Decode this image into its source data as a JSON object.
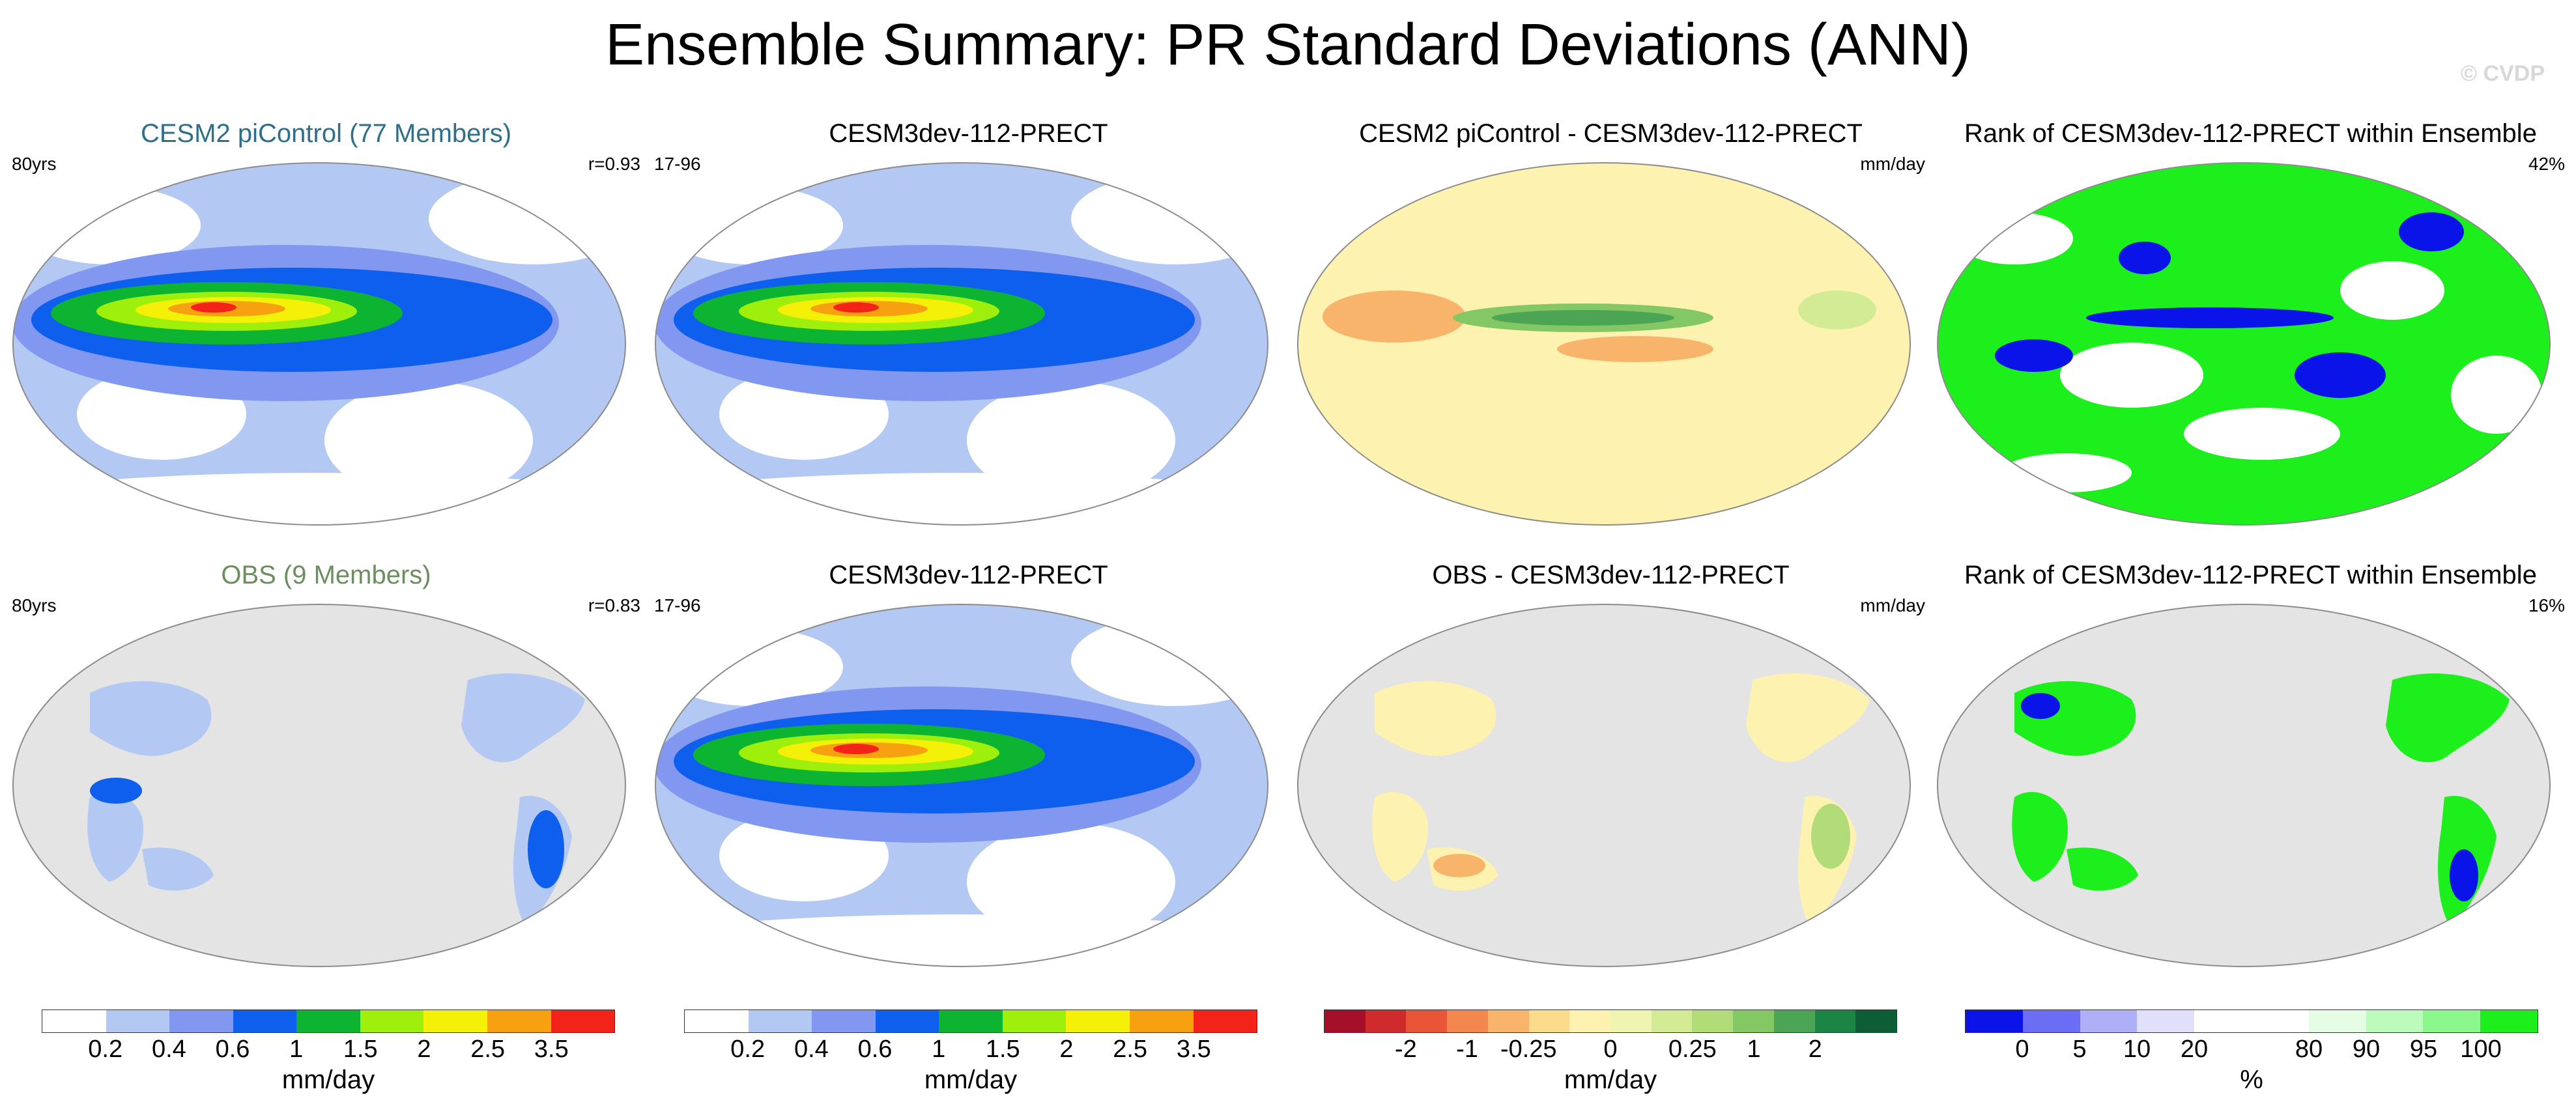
{
  "title": "Ensemble Summary: PR Standard Deviations (ANN)",
  "watermark": "© CVDP",
  "rows": [
    {
      "panels": [
        {
          "title": "CESM2 piControl (77 Members)",
          "left": "80yrs",
          "right": "r=0.93",
          "kind": "std"
        },
        {
          "title": "CESM3dev-112-PRECT",
          "left": "17-96",
          "right": "",
          "kind": "std"
        },
        {
          "title": "CESM2 piControl - CESM3dev-112-PRECT",
          "left": "",
          "right": "mm/day",
          "kind": "diff"
        },
        {
          "title": "Rank of CESM3dev-112-PRECT within Ensemble",
          "left": "",
          "right": "42%",
          "kind": "rank"
        }
      ]
    },
    {
      "panels": [
        {
          "title": "OBS (9 Members)",
          "left": "80yrs",
          "right": "r=0.83",
          "kind": "obs"
        },
        {
          "title": "CESM3dev-112-PRECT",
          "left": "17-96",
          "right": "",
          "kind": "std"
        },
        {
          "title": "OBS - CESM3dev-112-PRECT",
          "left": "",
          "right": "mm/day",
          "kind": "obsdiff"
        },
        {
          "title": "Rank of CESM3dev-112-PRECT within Ensemble",
          "left": "",
          "right": "16%",
          "kind": "obsrank"
        }
      ]
    }
  ],
  "colorbars": [
    {
      "colors": [
        "#ffffff",
        "#b4c8f4",
        "#8297f0",
        "#0f5fef",
        "#0db432",
        "#9fef0c",
        "#f4f007",
        "#f7a111",
        "#f4231a"
      ],
      "ticks": [
        "0.2",
        "0.4",
        "0.6",
        "1",
        "1.5",
        "2",
        "2.5",
        "3.5"
      ],
      "unit": "mm/day"
    },
    {
      "colors": [
        "#ffffff",
        "#b4c8f4",
        "#8297f0",
        "#0f5fef",
        "#0db432",
        "#9fef0c",
        "#f4f007",
        "#f7a111",
        "#f4231a"
      ],
      "ticks": [
        "0.2",
        "0.4",
        "0.6",
        "1",
        "1.5",
        "2",
        "2.5",
        "3.5"
      ],
      "unit": "mm/day"
    },
    {
      "colors": [
        "#a50f2a",
        "#cf2a2c",
        "#e85637",
        "#f3874f",
        "#f9b46b",
        "#fbdc8c",
        "#fdf2b0",
        "#eff5b0",
        "#d4eb95",
        "#b1dc78",
        "#84c765",
        "#4ca555",
        "#1c8445",
        "#0d5e34"
      ],
      "ticks": [
        "-2",
        "-1",
        "-0.25",
        "0",
        "0.25",
        "1",
        "2"
      ],
      "unit": "mm/day"
    },
    {
      "colors": [
        "#0a13e8",
        "#6b6ef5",
        "#aeb0f7",
        "#e0e0fb",
        "#ffffff",
        "#ffffff",
        "#e4fde4",
        "#bdfbbd",
        "#8cf78c",
        "#1cef1c"
      ],
      "ticks": [
        "0",
        "5",
        "10",
        "20",
        "80",
        "90",
        "95",
        "100"
      ],
      "unit": "%"
    }
  ]
}
